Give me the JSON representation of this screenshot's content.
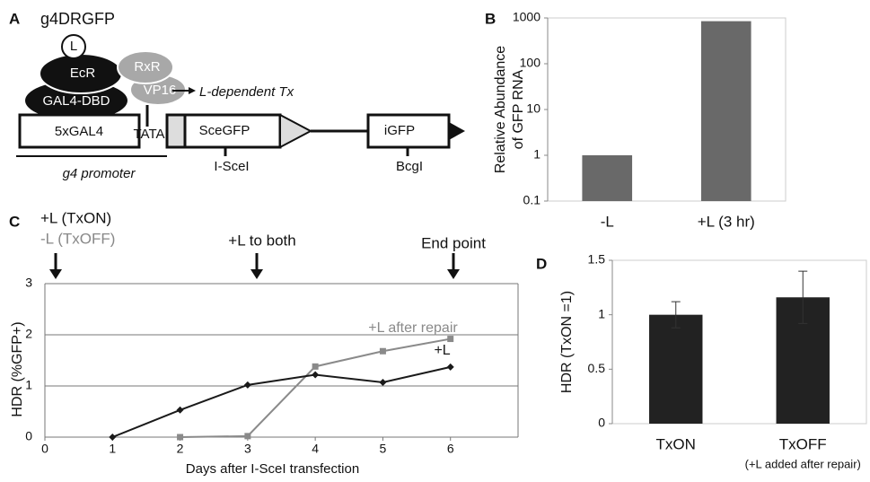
{
  "panel_labels": [
    "A",
    "B",
    "C",
    "D"
  ],
  "diagram": {
    "title": "g4DRGFP",
    "ligand": "L",
    "ecr": "EcR",
    "gal4_dbd": "GAL4-DBD",
    "rxr": "RxR",
    "vp16": "VP16",
    "transcription": "L-dependent Tx",
    "uas": "5xGAL4",
    "tata": "TATA",
    "scegfp": "SceGFP",
    "igfp": "iGFP",
    "site1": "I-SceI",
    "site2": "BcgI",
    "promoter": "g4 promoter"
  },
  "chart_data": [
    {
      "type": "bar",
      "ylabel": [
        "Relative Abundance",
        "of GFP RNA"
      ],
      "categories": [
        "-L",
        "+L (3 hr)"
      ],
      "values": [
        1,
        850
      ],
      "color": "#696969",
      "log_scale": true,
      "ylim": [
        0.1,
        1000
      ],
      "yticks": [
        0.1,
        1,
        10,
        100,
        1000
      ]
    },
    {
      "type": "line",
      "annotations": [
        "+L (TxON)",
        "-L (TxOFF)",
        "+L to both",
        "End point"
      ],
      "xlabel": "Days after I-SceI transfection",
      "ylabel": "HDR (%GFP+)",
      "x": [
        1,
        2,
        3,
        4,
        5,
        6
      ],
      "series": [
        {
          "name": "+L",
          "color": "#1a1a1a",
          "marker": "diamond",
          "values": [
            0,
            0.53,
            1.02,
            1.22,
            1.07,
            1.37
          ]
        },
        {
          "name": "+L after repair",
          "color": "#8a8a8a",
          "marker": "square",
          "values": [
            null,
            0,
            0.02,
            1.38,
            1.68,
            1.92
          ]
        }
      ],
      "xlim": [
        0,
        7
      ],
      "xticks": [
        0,
        1,
        2,
        3,
        4,
        5,
        6
      ],
      "ylim": [
        0,
        3
      ],
      "yticks": [
        0,
        1,
        2,
        3
      ],
      "grid": true
    },
    {
      "type": "bar",
      "ylabel": "HDR (TxON =1)",
      "categories": [
        "TxON",
        "TxOFF"
      ],
      "category_note": "(+L added after repair)",
      "values": [
        1,
        1.16
      ],
      "errors": [
        0.12,
        0.24
      ],
      "color": "#222222",
      "ylim": [
        0,
        1.5
      ],
      "yticks": [
        0,
        {
          "value": 0.5,
          "label": "0.5"
        },
        1,
        {
          "value": 1.5,
          "label": "1.5"
        }
      ]
    }
  ]
}
